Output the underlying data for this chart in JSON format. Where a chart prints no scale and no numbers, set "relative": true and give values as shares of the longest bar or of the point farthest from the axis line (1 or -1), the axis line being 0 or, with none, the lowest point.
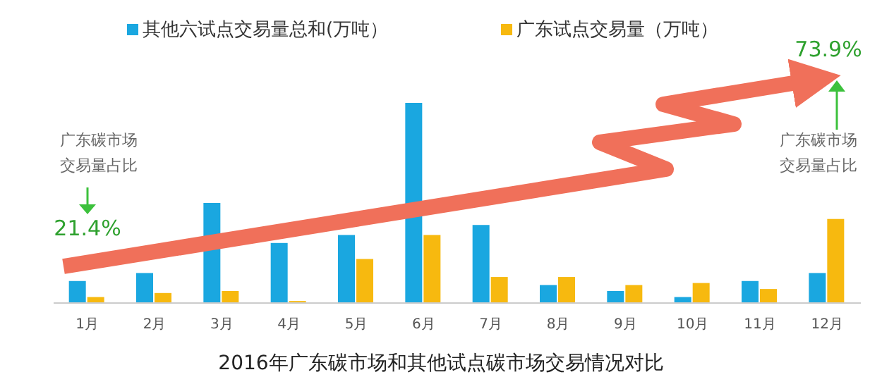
{
  "chart_data": {
    "type": "bar",
    "title": "2016年广东碳市场和其他试点碳市场交易情况对比",
    "relative": true,
    "legend": "top",
    "categories": [
      "1月",
      "2月",
      "3月",
      "4月",
      "5月",
      "6月",
      "7月",
      "8月",
      "9月",
      "10月",
      "11月",
      "12月"
    ],
    "series": [
      {
        "name": "其他六试点交易量总和(万吨）",
        "color": "#1aa7e0",
        "values": [
          0.11,
          0.15,
          0.5,
          0.3,
          0.34,
          1,
          0.39,
          0.09,
          0.06,
          0.03,
          0.11,
          0.15
        ]
      },
      {
        "name": "广东试点交易量（万吨）",
        "color": "#f7b90f",
        "values": [
          0.03,
          0.05,
          0.06,
          0.01,
          0.22,
          0.34,
          0.13,
          0.13,
          0.09,
          0.1,
          0.07,
          0.42
        ]
      }
    ],
    "annotations": [
      "广东碳市场",
      "交易量占比",
      "21.4%",
      "73.9%",
      "广东碳市场",
      "交易量占比"
    ]
  }
}
